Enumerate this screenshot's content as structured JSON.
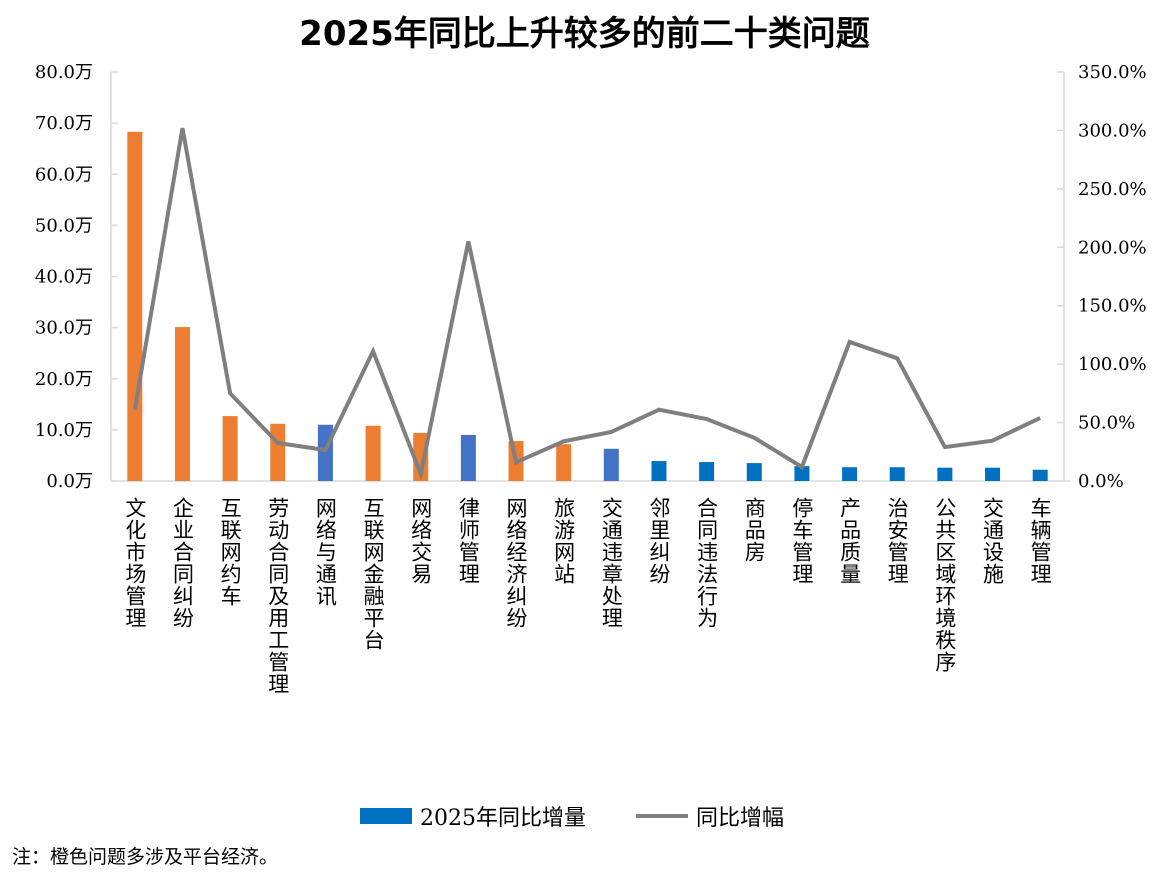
{
  "chart_data": {
    "type": "bar+line",
    "title": "2025年同比上升较多的前二十类问题",
    "categories": [
      "文化市场管理",
      "企业合同纠纷",
      "互联网约车",
      "劳动合同及用工管理",
      "网络与通讯",
      "互联网金融平台",
      "网络交易",
      "律师管理",
      "网络经济纠纷",
      "旅游网站",
      "交通违章处理",
      "邻里纠纷",
      "合同违法行为",
      "商品房",
      "停车管理",
      "产品质量",
      "治安管理",
      "公共区域环境秩序",
      "交通设施",
      "车辆管理"
    ],
    "series": [
      {
        "name": "2025年同比增量",
        "type": "bar",
        "axis": "left",
        "values": [
          68.3,
          30.1,
          12.7,
          11.2,
          11.0,
          10.8,
          9.4,
          9.0,
          7.8,
          7.2,
          6.3,
          3.9,
          3.7,
          3.5,
          2.9,
          2.7,
          2.7,
          2.6,
          2.6,
          2.2
        ],
        "colors": [
          "#ED7D31",
          "#ED7D31",
          "#ED7D31",
          "#ED7D31",
          "#4472C4",
          "#ED7D31",
          "#ED7D31",
          "#4472C4",
          "#ED7D31",
          "#ED7D31",
          "#4472C4",
          "#0070C0",
          "#0070C0",
          "#0070C0",
          "#0070C0",
          "#0070C0",
          "#0070C0",
          "#0070C0",
          "#0070C0",
          "#0070C0"
        ]
      },
      {
        "name": "同比增幅",
        "type": "line",
        "axis": "right",
        "color": "#7F7F7F",
        "values": [
          61,
          302,
          75,
          32.5,
          26.5,
          111,
          6,
          205,
          16,
          34,
          42,
          61,
          53,
          37,
          12,
          119,
          105,
          29,
          34.5,
          54
        ]
      }
    ],
    "y_left": {
      "ylim": [
        0,
        80
      ],
      "ticks": [
        "0.0万",
        "10.0万",
        "20.0万",
        "30.0万",
        "40.0万",
        "50.0万",
        "60.0万",
        "70.0万",
        "80.0万"
      ]
    },
    "y_right": {
      "ylim": [
        0,
        350
      ],
      "ticks": [
        "0.0%",
        "50.0%",
        "100.0%",
        "150.0%",
        "200.0%",
        "250.0%",
        "300.0%",
        "350.0%"
      ]
    },
    "grid": false,
    "legend_position": "bottom",
    "legend": {
      "bar_label": "2025年同比增量",
      "bar_color": "#0070C0",
      "line_label": "同比增幅",
      "line_color": "#7F7F7F"
    },
    "note": "注：橙色问题多涉及平台经济。"
  }
}
